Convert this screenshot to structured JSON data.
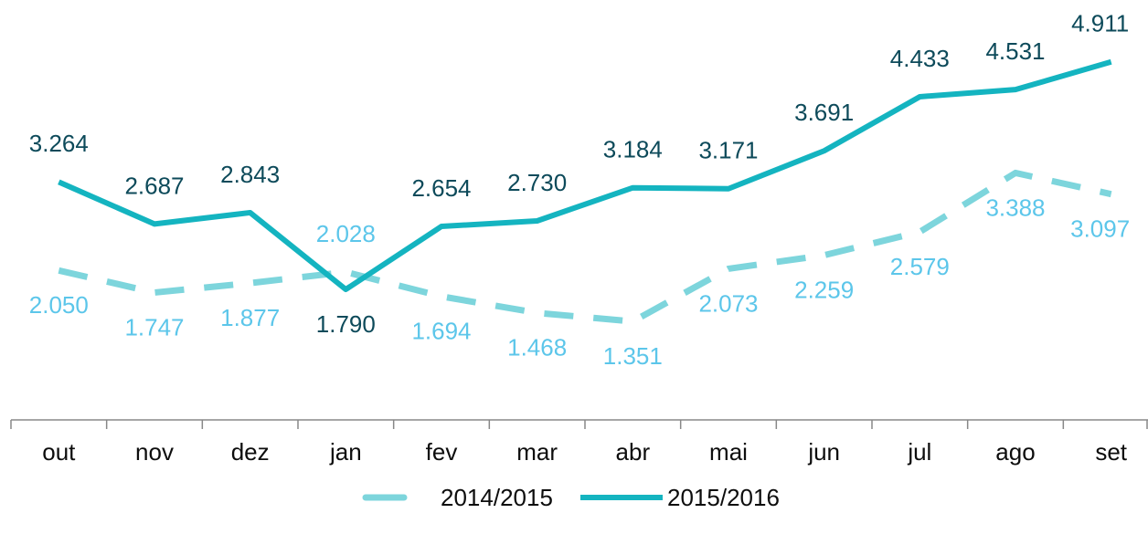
{
  "chart_data": {
    "type": "line",
    "categories": [
      "out",
      "nov",
      "dez",
      "jan",
      "fev",
      "mar",
      "abr",
      "mai",
      "jun",
      "jul",
      "ago",
      "set"
    ],
    "series": [
      {
        "name": "2014/2015",
        "color": "#7dd5dc",
        "label_color": "#5cc6ea",
        "dashed": true,
        "values": [
          2.05,
          1.747,
          1.877,
          2.028,
          1.694,
          1.468,
          1.351,
          2.073,
          2.259,
          2.579,
          3.388,
          3.097
        ],
        "value_labels": [
          "2.050",
          "1.747",
          "1.877",
          "2.028",
          "1.694",
          "1.468",
          "1.351",
          "2.073",
          "2.259",
          "2.579",
          "3.388",
          "3.097"
        ]
      },
      {
        "name": "2015/2016",
        "color": "#14b4c0",
        "label_color": "#0d4a5a",
        "dashed": false,
        "values": [
          3.264,
          2.687,
          2.843,
          1.79,
          2.654,
          2.73,
          3.184,
          3.171,
          3.691,
          4.433,
          4.531,
          4.911
        ],
        "value_labels": [
          "3.264",
          "2.687",
          "2.843",
          "1.790",
          "2.654",
          "2.730",
          "3.184",
          "3.171",
          "3.691",
          "4.433",
          "4.531",
          "4.911"
        ]
      }
    ],
    "ylim": [
      0,
      5.76
    ],
    "legend": "bottom"
  }
}
